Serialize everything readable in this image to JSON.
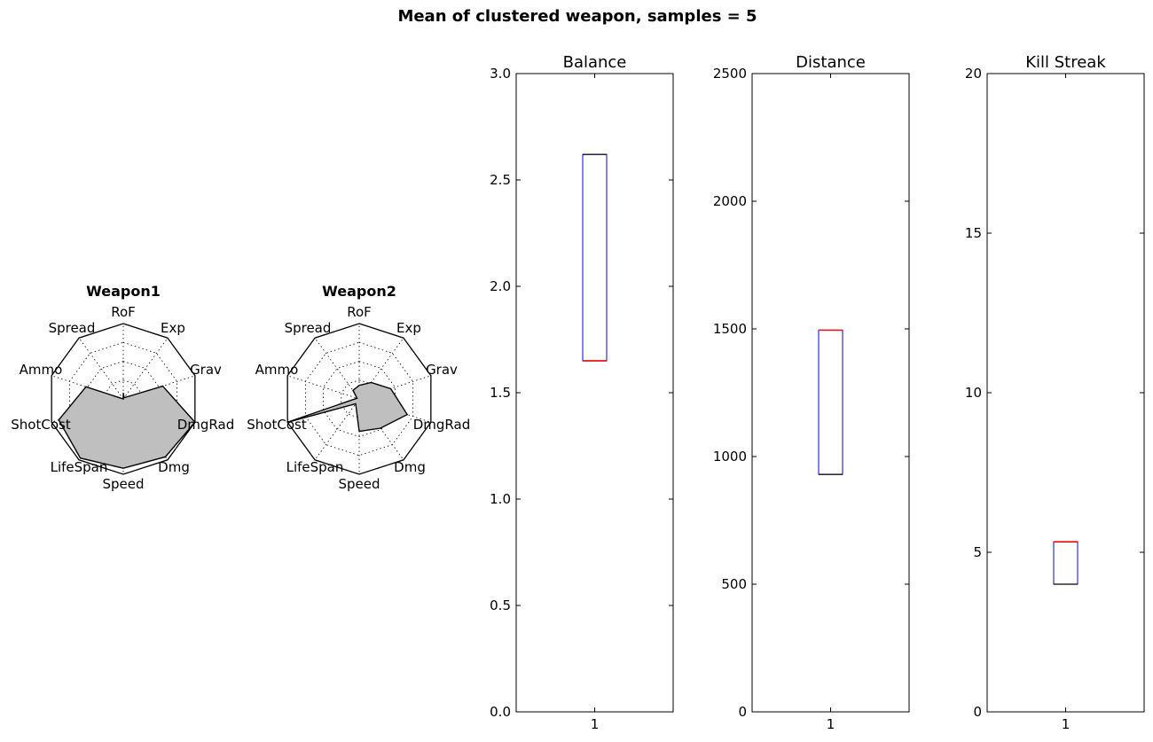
{
  "figure": {
    "title": "Mean of clustered weapon, samples = 5"
  },
  "chart_data": [
    {
      "type": "radar",
      "title": "Weapon1",
      "axes": [
        "RoF",
        "Exp",
        "Grav",
        "DmgRad",
        "Dmg",
        "Speed",
        "LifeSpan",
        "ShotCost",
        "Ammo",
        "Spread"
      ],
      "values": [
        0.08,
        0.02,
        0.55,
        1.0,
        0.95,
        0.92,
        0.97,
        0.9,
        0.52,
        0.0
      ],
      "rlim": [
        0,
        1
      ],
      "rings": [
        0.25,
        0.5,
        0.75,
        1.0
      ],
      "fill_color": "#bfbfbf",
      "grid": true
    },
    {
      "type": "radar",
      "title": "Weapon2",
      "axes": [
        "RoF",
        "Exp",
        "Grav",
        "DmgRad",
        "Dmg",
        "Speed",
        "LifeSpan",
        "ShotCost",
        "Ammo",
        "Spread"
      ],
      "values": [
        0.18,
        0.27,
        0.44,
        0.67,
        0.48,
        0.43,
        0.08,
        1.0,
        0.03,
        0.14
      ],
      "rlim": [
        0,
        1
      ],
      "rings": [
        0.25,
        0.5,
        0.75,
        1.0
      ],
      "fill_color": "#bfbfbf",
      "grid": true
    },
    {
      "type": "box",
      "title": "Balance",
      "categories": [
        "1"
      ],
      "box": {
        "q1": 1.65,
        "q3": 2.62,
        "median": 1.65,
        "whisker_low": 1.65,
        "whisker_high": 2.62
      },
      "ylim": [
        0,
        3
      ],
      "yticks": [
        0,
        0.5,
        1,
        1.5,
        2,
        2.5,
        3
      ],
      "ytick_labels": [
        "0.0",
        "0.5",
        "1.0",
        "1.5",
        "2.0",
        "2.5",
        "3.0"
      ],
      "box_color": "#0000ff",
      "median_color": "#ff0000"
    },
    {
      "type": "box",
      "title": "Distance",
      "categories": [
        "1"
      ],
      "box": {
        "q1": 930,
        "q3": 1495,
        "median": 1495,
        "whisker_low": 930,
        "whisker_high": 1495
      },
      "ylim": [
        0,
        2500
      ],
      "yticks": [
        0,
        500,
        1000,
        1500,
        2000,
        2500
      ],
      "ytick_labels": [
        "0",
        "500",
        "1000",
        "1500",
        "2000",
        "2500"
      ],
      "box_color": "#0000ff",
      "median_color": "#ff0000"
    },
    {
      "type": "box",
      "title": "Kill Streak",
      "categories": [
        "1"
      ],
      "box": {
        "q1": 4.0,
        "q3": 5.33,
        "median": 5.33,
        "whisker_low": 4.0,
        "whisker_high": 5.33
      },
      "ylim": [
        0,
        20
      ],
      "yticks": [
        0,
        5,
        10,
        15,
        20
      ],
      "ytick_labels": [
        "0",
        "5",
        "10",
        "15",
        "20"
      ],
      "box_color": "#0000ff",
      "median_color": "#ff0000"
    }
  ]
}
